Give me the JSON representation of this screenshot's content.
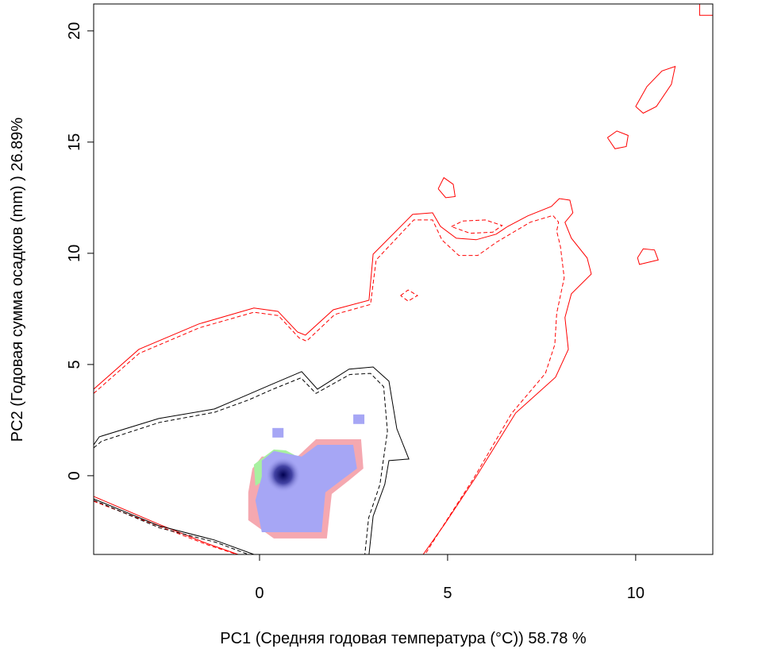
{
  "chart_data": {
    "type": "contour",
    "x_label": "PC1 (Средняя годовая температура (°C)) 58.78 %",
    "y_label": "PC2 (Годовая сумма осадков  (mm) ) 26.89%",
    "xlim": [
      -4.41,
      12.05
    ],
    "ylim": [
      -3.54,
      21.21
    ],
    "xticks": [
      0,
      5,
      10
    ],
    "yticks": [
      0,
      5,
      10,
      15,
      20
    ],
    "areas": [
      {
        "color": "#f5a8b0",
        "x": [
          -0.19,
          0.06,
          1.01,
          1.5,
          2.7,
          2.76,
          2.38,
          1.92,
          1.79,
          0.38,
          -0.3,
          -0.3
        ],
        "y": [
          0.32,
          0.86,
          0.86,
          1.64,
          1.64,
          0.32,
          -0.21,
          -0.82,
          -2.82,
          -2.82,
          -2.0,
          -0.75
        ]
      },
      {
        "color": "#a8f0a0",
        "x": [
          -0.15,
          0.13,
          0.38,
          0.7,
          1.01,
          0.27,
          -0.11
        ],
        "y": [
          0.5,
          0.86,
          1.18,
          1.14,
          0.86,
          -0.04,
          -0.46
        ]
      },
      {
        "color": "#a6a6f5",
        "x": [
          0.06,
          0.38,
          1.12,
          1.54,
          2.49,
          2.59,
          2.17,
          1.75,
          1.65,
          0.06,
          -0.11,
          0.06
        ],
        "y": [
          0.68,
          1.11,
          0.86,
          1.39,
          1.39,
          0.32,
          -0.21,
          -0.75,
          -2.54,
          -2.54,
          -1.11,
          -0.04
        ]
      }
    ],
    "cells": {
      "color": "#a6a6f5",
      "x": [
        0.49,
        2.64
      ],
      "y": [
        1.93,
        2.54
      ]
    },
    "peak": {
      "color": "#000050",
      "x": 0.63,
      "y": 0.04
    },
    "lines": [
      {
        "color": "#ff0000",
        "dash": false,
        "x": [
          -4.41,
          -3.21,
          -1.62,
          -0.15,
          0.49,
          1.01,
          1.22,
          1.96,
          2.91,
          3.02,
          4.07,
          4.6,
          4.81,
          5.23,
          5.76,
          6.29,
          6.6,
          7.13,
          7.76,
          7.97,
          8.25,
          8.33,
          8.12,
          8.29,
          8.71,
          8.82,
          8.29,
          8.12,
          8.21,
          7.87,
          6.81,
          5.76,
          4.92,
          4.35
        ],
        "y": [
          3.89,
          5.68,
          6.82,
          7.54,
          7.39,
          6.46,
          6.32,
          7.46,
          7.89,
          9.96,
          11.75,
          11.82,
          11.21,
          10.68,
          10.61,
          10.86,
          11.21,
          11.68,
          12.11,
          12.46,
          12.39,
          11.82,
          11.39,
          10.68,
          9.79,
          9.07,
          8.18,
          7.11,
          5.68,
          4.43,
          2.82,
          -0.04,
          -2.18,
          -3.54
        ]
      },
      {
        "color": "#ff0000",
        "dash": true,
        "x": [
          -4.41,
          -3.2,
          -1.6,
          -0.15,
          0.5,
          1.05,
          1.25,
          2.0,
          2.95,
          3.1,
          4.1,
          4.6,
          4.85,
          5.3,
          5.8,
          6.3,
          6.7,
          7.2,
          7.8,
          7.95,
          7.9,
          8.0,
          8.1,
          7.9,
          7.85,
          7.6,
          6.7,
          5.7,
          4.9,
          4.4
        ],
        "y": [
          3.7,
          5.5,
          6.65,
          7.35,
          7.2,
          6.2,
          6.05,
          7.25,
          7.7,
          9.7,
          11.5,
          11.5,
          10.6,
          9.9,
          9.9,
          10.5,
          10.9,
          11.4,
          11.7,
          11.4,
          11.0,
          10.3,
          8.9,
          7.3,
          5.9,
          4.6,
          2.8,
          -0.1,
          -2.2,
          -3.54
        ]
      },
      {
        "color": "#ff0000",
        "dash": false,
        "x": [
          -4.41,
          -2.68,
          -1.41,
          -0.57
        ],
        "y": [
          -0.93,
          -2.18,
          -3.04,
          -3.54
        ]
      },
      {
        "color": "#ff0000",
        "dash": true,
        "x": [
          -4.41,
          -2.7,
          -1.4,
          -0.6
        ],
        "y": [
          -1.15,
          -2.25,
          -3.1,
          -3.54
        ]
      },
      {
        "color": "#ff0000",
        "dash": false,
        "x": [
          4.75,
          4.9,
          5.15,
          5.2,
          4.95,
          4.75
        ],
        "y": [
          12.9,
          13.4,
          13.1,
          12.55,
          12.5,
          12.9
        ]
      },
      {
        "color": "#ff0000",
        "dash": false,
        "x": [
          9.25,
          9.5,
          9.8,
          9.75,
          9.45,
          9.25
        ],
        "y": [
          15.2,
          15.5,
          15.3,
          14.8,
          14.7,
          15.2
        ]
      },
      {
        "color": "#ff0000",
        "dash": false,
        "x": [
          10.0,
          10.3,
          10.7,
          11.05,
          10.95,
          10.55,
          10.2,
          10.0
        ],
        "y": [
          16.6,
          17.5,
          18.2,
          18.4,
          17.6,
          16.6,
          16.3,
          16.6
        ]
      },
      {
        "color": "#ff0000",
        "dash": false,
        "x": [
          10.05,
          10.2,
          10.5,
          10.6,
          10.1,
          10.05
        ],
        "y": [
          9.8,
          10.2,
          10.15,
          9.7,
          9.5,
          9.8
        ]
      },
      {
        "color": "#ff0000",
        "dash": false,
        "x": [
          11.7,
          11.7,
          12.05
        ],
        "y": [
          21.21,
          20.7,
          20.7
        ]
      },
      {
        "color": "#ff0000",
        "dash": true,
        "x": [
          5.1,
          5.4,
          6.0,
          6.45,
          6.2,
          5.6,
          5.1
        ],
        "y": [
          11.2,
          11.45,
          11.5,
          11.25,
          10.95,
          10.9,
          11.2
        ]
      },
      {
        "color": "#ff0000",
        "dash": true,
        "x": [
          3.75,
          3.95,
          4.2,
          3.95,
          3.75
        ],
        "y": [
          8.1,
          8.35,
          8.1,
          7.85,
          8.1
        ]
      },
      {
        "color": "#000000",
        "dash": false,
        "x": [
          -4.41,
          -4.26,
          -2.68,
          -1.2,
          -0.36,
          0.27,
          1.12,
          1.54,
          2.38,
          3.02,
          3.44,
          3.65,
          3.97,
          3.44,
          3.33,
          3.02,
          2.91
        ],
        "y": [
          1.39,
          1.75,
          2.57,
          3.0,
          3.61,
          4.07,
          4.68,
          3.89,
          4.79,
          4.89,
          4.25,
          2.11,
          0.75,
          0.68,
          -0.39,
          -1.82,
          -3.54
        ]
      },
      {
        "color": "#000000",
        "dash": true,
        "x": [
          -4.41,
          -4.2,
          -2.65,
          -1.2,
          -0.3,
          0.3,
          1.1,
          1.5,
          2.4,
          2.95,
          3.3,
          3.4,
          3.3,
          3.2,
          2.9,
          2.8
        ],
        "y": [
          1.25,
          1.55,
          2.4,
          2.85,
          3.4,
          3.85,
          4.4,
          3.7,
          4.55,
          4.6,
          4.0,
          2.0,
          0.8,
          -0.4,
          -1.9,
          -3.54
        ]
      },
      {
        "color": "#000000",
        "dash": false,
        "x": [
          -4.41,
          -2.68,
          -1.2,
          -0.15
        ],
        "y": [
          -1.04,
          -2.25,
          -2.89,
          -3.54
        ]
      },
      {
        "color": "#000000",
        "dash": true,
        "x": [
          -4.41,
          -2.65,
          -1.15,
          -0.3
        ],
        "y": [
          -1.1,
          -2.35,
          -3.0,
          -3.54
        ]
      }
    ]
  }
}
